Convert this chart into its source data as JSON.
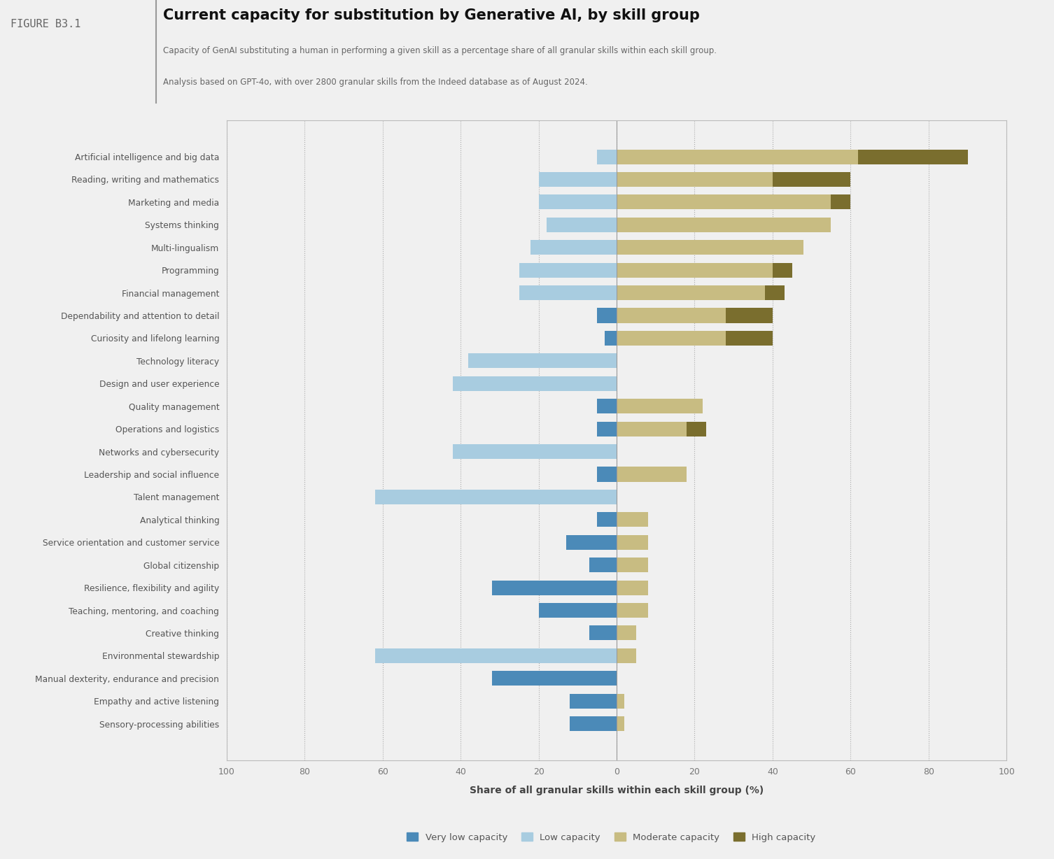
{
  "title": "Current capacity for substitution by Generative AI, by skill group",
  "figure_label": "FIGURE B3.1",
  "subtitle_line1": "Capacity of GenAI substituting a human in performing a given skill as a percentage share of all granular skills within each skill group.",
  "subtitle_line2": "Analysis based on GPT-4o, with over 2800 granular skills from the Indeed database as of August 2024.",
  "xlabel": "Share of all granular skills within each skill group (%)",
  "categories": [
    "Artificial intelligence and big data",
    "Reading, writing and mathematics",
    "Marketing and media",
    "Systems thinking",
    "Multi-lingualism",
    "Programming",
    "Financial management",
    "Dependability and attention to detail",
    "Curiosity and lifelong learning",
    "Technology literacy",
    "Design and user experience",
    "Quality management",
    "Operations and logistics",
    "Networks and cybersecurity",
    "Leadership and social influence",
    "Talent management",
    "Analytical thinking",
    "Service orientation and customer service",
    "Global citizenship",
    "Resilience, flexibility and agility",
    "Teaching, mentoring, and coaching",
    "Creative thinking",
    "Environmental stewardship",
    "Manual dexterity, endurance and precision",
    "Empathy and active listening",
    "Sensory-processing abilities"
  ],
  "very_low": [
    0,
    0,
    0,
    0,
    0,
    0,
    0,
    5,
    3,
    0,
    0,
    5,
    5,
    0,
    5,
    0,
    5,
    13,
    7,
    32,
    20,
    7,
    0,
    32,
    12,
    12
  ],
  "low": [
    5,
    20,
    20,
    18,
    22,
    25,
    25,
    0,
    0,
    38,
    42,
    0,
    0,
    42,
    0,
    62,
    0,
    0,
    0,
    0,
    0,
    0,
    62,
    0,
    0,
    0
  ],
  "moderate": [
    62,
    40,
    55,
    55,
    48,
    40,
    38,
    28,
    28,
    0,
    0,
    22,
    18,
    0,
    18,
    0,
    8,
    8,
    8,
    8,
    8,
    5,
    5,
    0,
    2,
    2
  ],
  "high": [
    28,
    20,
    5,
    0,
    0,
    5,
    5,
    12,
    12,
    0,
    0,
    0,
    5,
    0,
    0,
    0,
    0,
    0,
    0,
    0,
    0,
    0,
    0,
    0,
    0,
    0
  ],
  "color_very_low": "#4b8ab8",
  "color_low": "#a8cce0",
  "color_moderate": "#c8bc82",
  "color_high": "#7a6e2e",
  "background_color": "#f0f0f0",
  "bar_height": 0.65,
  "xlim": 100,
  "legend_labels": [
    "Very low capacity",
    "Low capacity",
    "Moderate capacity",
    "High capacity"
  ]
}
